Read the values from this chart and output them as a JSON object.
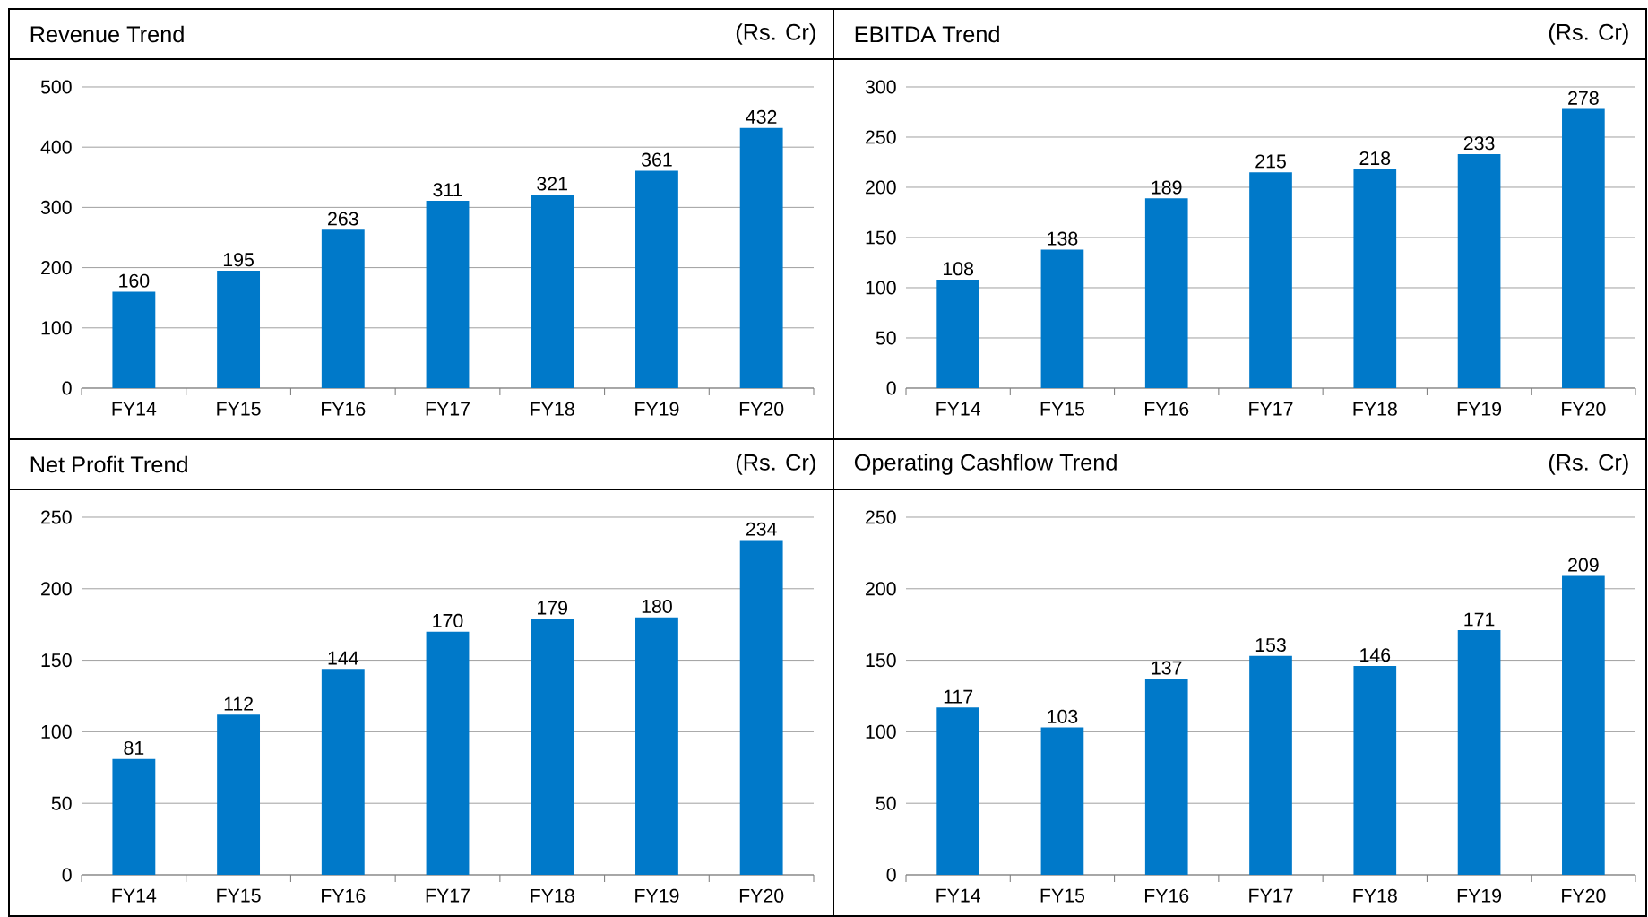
{
  "chart_data": [
    {
      "type": "bar",
      "title": "Revenue Trend",
      "subtitle": "(Rs. Cr)",
      "categories": [
        "FY14",
        "FY15",
        "FY16",
        "FY17",
        "FY18",
        "FY19",
        "FY20"
      ],
      "values": [
        160,
        195,
        263,
        311,
        321,
        361,
        432
      ],
      "color": "#0079c9",
      "ylim": [
        0,
        500
      ],
      "yticks": [
        0,
        100,
        200,
        300,
        400,
        500
      ],
      "grid": "y",
      "data_labels": true
    },
    {
      "type": "bar",
      "title": "EBITDA Trend",
      "subtitle": "(Rs. Cr)",
      "categories": [
        "FY14",
        "FY15",
        "FY16",
        "FY17",
        "FY18",
        "FY19",
        "FY20"
      ],
      "values": [
        108,
        138,
        189,
        215,
        218,
        233,
        278
      ],
      "color": "#0079c9",
      "ylim": [
        0,
        300
      ],
      "yticks": [
        0,
        50,
        100,
        150,
        200,
        250,
        300
      ],
      "grid": "y",
      "data_labels": true
    },
    {
      "type": "bar",
      "title": "Net Profit Trend",
      "subtitle": "(Rs. Cr)",
      "categories": [
        "FY14",
        "FY15",
        "FY16",
        "FY17",
        "FY18",
        "FY19",
        "FY20"
      ],
      "values": [
        81,
        112,
        144,
        170,
        179,
        180,
        234
      ],
      "color": "#0079c9",
      "ylim": [
        0,
        250
      ],
      "yticks": [
        0,
        50,
        100,
        150,
        200,
        250
      ],
      "grid": "y",
      "data_labels": true
    },
    {
      "type": "bar",
      "title": "Operating Cashflow Trend",
      "subtitle": "(Rs. Cr)",
      "categories": [
        "FY14",
        "FY15",
        "FY16",
        "FY17",
        "FY18",
        "FY19",
        "FY20"
      ],
      "values": [
        117,
        103,
        137,
        153,
        146,
        171,
        209
      ],
      "color": "#0079c9",
      "ylim": [
        0,
        250
      ],
      "yticks": [
        0,
        50,
        100,
        150,
        200,
        250
      ],
      "grid": "y",
      "data_labels": true
    }
  ]
}
